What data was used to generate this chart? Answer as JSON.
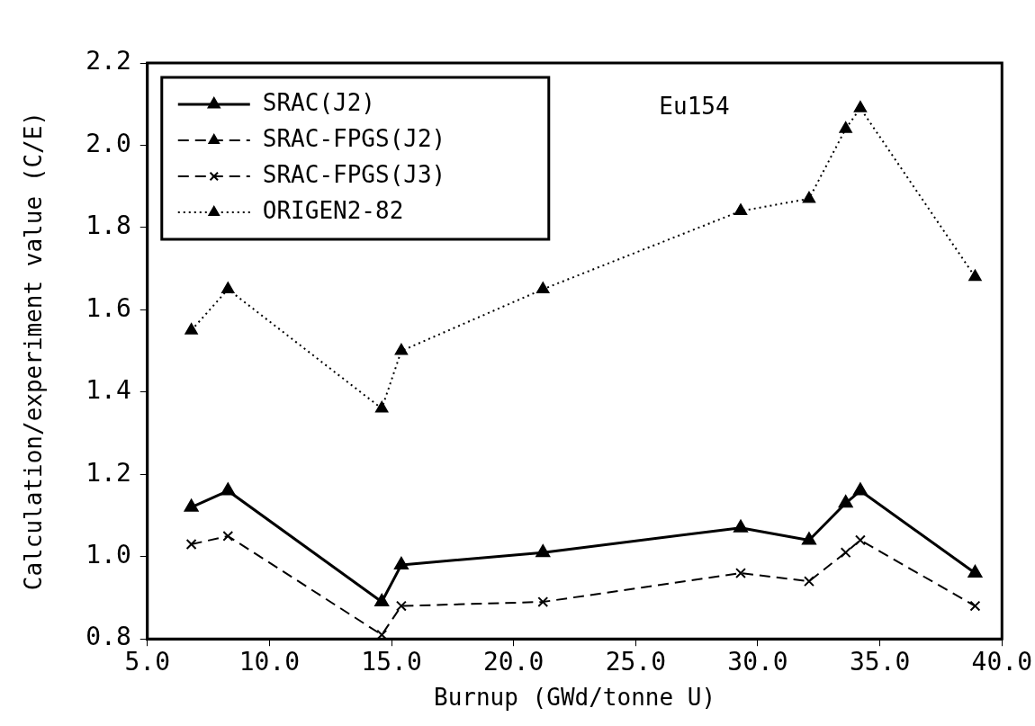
{
  "chart_data": {
    "type": "line",
    "xlabel": "Burnup (GWd/tonne U)",
    "ylabel": "Calculation/experiment value (C/E)",
    "x": [
      6.8,
      8.3,
      14.6,
      15.4,
      21.2,
      29.3,
      32.1,
      33.6,
      34.2,
      38.9
    ],
    "series": [
      {
        "name": "SRAC(J2)",
        "color": "#000000",
        "marker": "triangle",
        "line_style": "solid",
        "values": [
          1.12,
          1.16,
          0.89,
          0.98,
          1.01,
          1.07,
          1.04,
          1.13,
          1.16,
          0.96
        ]
      },
      {
        "name": "SRAC-FPGS(J2)",
        "color": "#000000",
        "marker": "triangle",
        "line_style": "dashed",
        "values": [
          null,
          null,
          null,
          null,
          null,
          null,
          null,
          null,
          null,
          null
        ]
      },
      {
        "name": "SRAC-FPGS(J3)",
        "color": "#000000",
        "marker": "cross",
        "line_style": "dashed",
        "values": [
          1.03,
          1.05,
          0.81,
          0.88,
          0.89,
          0.96,
          0.94,
          1.01,
          1.04,
          0.88
        ]
      },
      {
        "name": "ORIGEN2-82",
        "color": "#000000",
        "marker": "triangle",
        "line_style": "dotted",
        "values": [
          1.55,
          1.65,
          1.36,
          1.5,
          1.65,
          1.84,
          1.87,
          2.04,
          2.09,
          1.68
        ]
      }
    ],
    "annotations": [
      "Eu154"
    ],
    "xlim": [
      5.0,
      40.0
    ],
    "xticks": [
      {
        "value": 5,
        "label": "5.0"
      },
      {
        "value": 10,
        "label": "10.0"
      },
      {
        "value": 15,
        "label": "15.0"
      },
      {
        "value": 20,
        "label": "20.0"
      },
      {
        "value": 25,
        "label": "25.0"
      },
      {
        "value": 30,
        "label": "30.0"
      },
      {
        "value": 35,
        "label": "35.0"
      },
      {
        "value": 40,
        "label": "40.0"
      }
    ],
    "ylim": [
      0.8,
      2.2
    ],
    "yticks": [
      {
        "value": 0.8,
        "label": "0.8"
      },
      {
        "value": 1.0,
        "label": "1.0"
      },
      {
        "value": 1.2,
        "label": "1.2"
      },
      {
        "value": 1.4,
        "label": "1.4"
      },
      {
        "value": 1.6,
        "label": "1.6"
      },
      {
        "value": 1.8,
        "label": "1.8"
      },
      {
        "value": 2.0,
        "label": "2.0"
      },
      {
        "value": 2.2,
        "label": "2.2"
      }
    ],
    "grid": false,
    "legend": "top left"
  }
}
